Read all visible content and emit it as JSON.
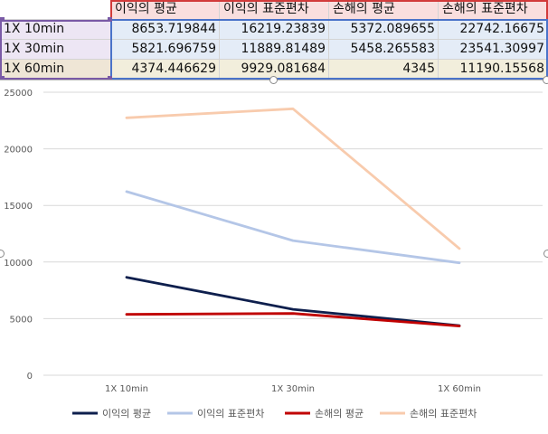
{
  "sheet": {
    "headers": [
      "이익의 평균",
      "이익의 표준편차",
      "손해의 평균",
      "손해의 표준편차"
    ],
    "rows": [
      {
        "label": "1X 10min",
        "values": [
          "8653.719844",
          "16219.23839",
          "5372.089655",
          "22742.16675"
        ]
      },
      {
        "label": "1X 30min",
        "values": [
          "5821.696759",
          "11889.81489",
          "5458.265583",
          "23541.30997"
        ]
      },
      {
        "label": "1X 60min",
        "values": [
          "4374.446629",
          "9929.081684",
          "4345",
          "11190.15568"
        ]
      }
    ],
    "colors": {
      "header_bg": "#f9dede",
      "label_bg": "#ede6f4",
      "label_bg_last": "#efe6d6",
      "value_bg": "#e4ecf7",
      "value_bg_last": "#f2eedc"
    }
  },
  "chart_data": {
    "type": "line",
    "categories": [
      "1X 10min",
      "1X 30min",
      "1X 60min"
    ],
    "series": [
      {
        "name": "이익의 평균",
        "color": "#0e1f4d",
        "values": [
          8653.719844,
          5821.696759,
          4374.446629
        ]
      },
      {
        "name": "이익의 표준편차",
        "color": "#b4c6e7",
        "values": [
          16219.23839,
          11889.81489,
          9929.081684
        ]
      },
      {
        "name": "손해의 평균",
        "color": "#c00000",
        "values": [
          5372.089655,
          5458.265583,
          4345
        ]
      },
      {
        "name": "손해의 표준편차",
        "color": "#f8cbad",
        "values": [
          22742.16675,
          23541.30997,
          11190.15568
        ]
      }
    ],
    "ylim": [
      0,
      25000
    ],
    "yticks": [
      0,
      5000,
      10000,
      15000,
      20000,
      25000
    ],
    "grid": true,
    "legend": "bottom"
  }
}
